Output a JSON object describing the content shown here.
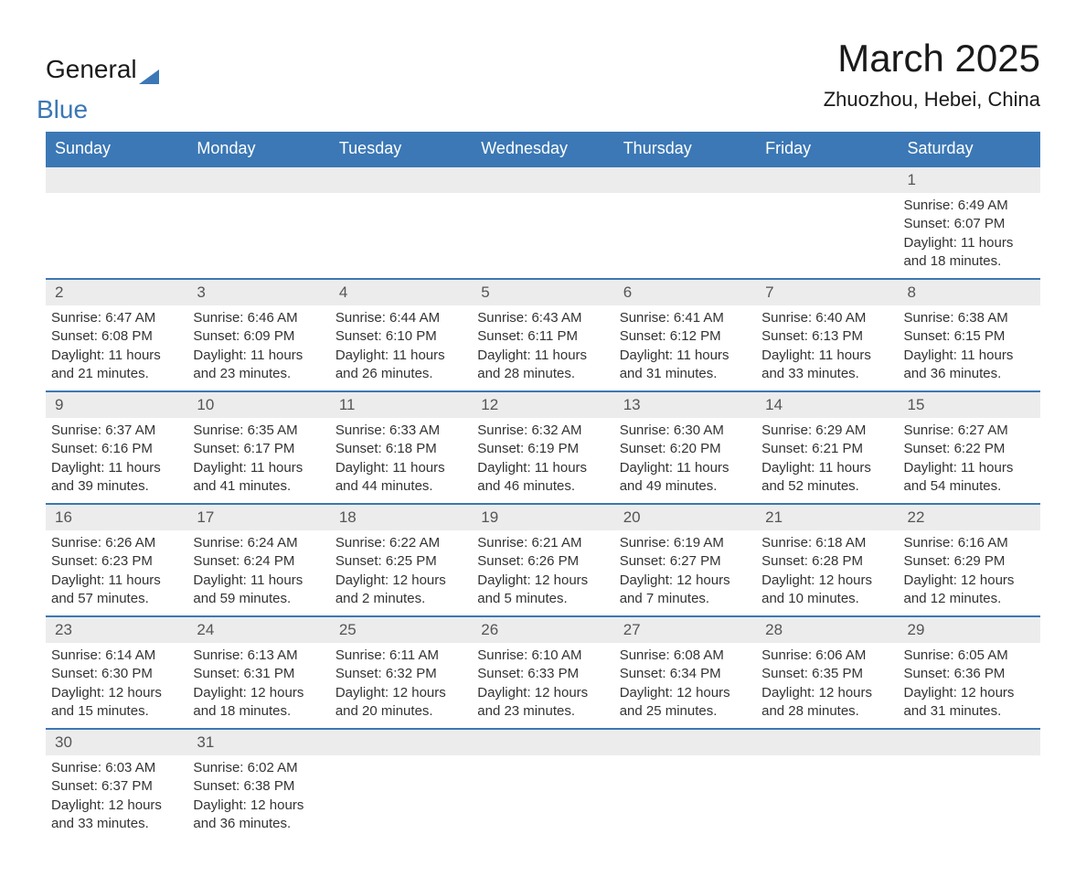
{
  "logo": {
    "word1": "General",
    "word2": "Blue"
  },
  "header": {
    "month_title": "March 2025",
    "location": "Zhuozhou, Hebei, China"
  },
  "styling": {
    "header_bg_color": "#3b78b5",
    "header_text_color": "#ffffff",
    "day_number_bg_color": "#ececec",
    "border_color": "#3b78b5",
    "body_text_color": "#333333",
    "title_fontsize": 42,
    "location_fontsize": 22,
    "weekday_fontsize": 18,
    "day_number_fontsize": 17,
    "content_fontsize": 15
  },
  "weekdays": [
    "Sunday",
    "Monday",
    "Tuesday",
    "Wednesday",
    "Thursday",
    "Friday",
    "Saturday"
  ],
  "weeks": [
    [
      {
        "blank": true
      },
      {
        "blank": true
      },
      {
        "blank": true
      },
      {
        "blank": true
      },
      {
        "blank": true
      },
      {
        "blank": true
      },
      {
        "day": "1",
        "sunrise": "Sunrise: 6:49 AM",
        "sunset": "Sunset: 6:07 PM",
        "daylight1": "Daylight: 11 hours",
        "daylight2": "and 18 minutes."
      }
    ],
    [
      {
        "day": "2",
        "sunrise": "Sunrise: 6:47 AM",
        "sunset": "Sunset: 6:08 PM",
        "daylight1": "Daylight: 11 hours",
        "daylight2": "and 21 minutes."
      },
      {
        "day": "3",
        "sunrise": "Sunrise: 6:46 AM",
        "sunset": "Sunset: 6:09 PM",
        "daylight1": "Daylight: 11 hours",
        "daylight2": "and 23 minutes."
      },
      {
        "day": "4",
        "sunrise": "Sunrise: 6:44 AM",
        "sunset": "Sunset: 6:10 PM",
        "daylight1": "Daylight: 11 hours",
        "daylight2": "and 26 minutes."
      },
      {
        "day": "5",
        "sunrise": "Sunrise: 6:43 AM",
        "sunset": "Sunset: 6:11 PM",
        "daylight1": "Daylight: 11 hours",
        "daylight2": "and 28 minutes."
      },
      {
        "day": "6",
        "sunrise": "Sunrise: 6:41 AM",
        "sunset": "Sunset: 6:12 PM",
        "daylight1": "Daylight: 11 hours",
        "daylight2": "and 31 minutes."
      },
      {
        "day": "7",
        "sunrise": "Sunrise: 6:40 AM",
        "sunset": "Sunset: 6:13 PM",
        "daylight1": "Daylight: 11 hours",
        "daylight2": "and 33 minutes."
      },
      {
        "day": "8",
        "sunrise": "Sunrise: 6:38 AM",
        "sunset": "Sunset: 6:15 PM",
        "daylight1": "Daylight: 11 hours",
        "daylight2": "and 36 minutes."
      }
    ],
    [
      {
        "day": "9",
        "sunrise": "Sunrise: 6:37 AM",
        "sunset": "Sunset: 6:16 PM",
        "daylight1": "Daylight: 11 hours",
        "daylight2": "and 39 minutes."
      },
      {
        "day": "10",
        "sunrise": "Sunrise: 6:35 AM",
        "sunset": "Sunset: 6:17 PM",
        "daylight1": "Daylight: 11 hours",
        "daylight2": "and 41 minutes."
      },
      {
        "day": "11",
        "sunrise": "Sunrise: 6:33 AM",
        "sunset": "Sunset: 6:18 PM",
        "daylight1": "Daylight: 11 hours",
        "daylight2": "and 44 minutes."
      },
      {
        "day": "12",
        "sunrise": "Sunrise: 6:32 AM",
        "sunset": "Sunset: 6:19 PM",
        "daylight1": "Daylight: 11 hours",
        "daylight2": "and 46 minutes."
      },
      {
        "day": "13",
        "sunrise": "Sunrise: 6:30 AM",
        "sunset": "Sunset: 6:20 PM",
        "daylight1": "Daylight: 11 hours",
        "daylight2": "and 49 minutes."
      },
      {
        "day": "14",
        "sunrise": "Sunrise: 6:29 AM",
        "sunset": "Sunset: 6:21 PM",
        "daylight1": "Daylight: 11 hours",
        "daylight2": "and 52 minutes."
      },
      {
        "day": "15",
        "sunrise": "Sunrise: 6:27 AM",
        "sunset": "Sunset: 6:22 PM",
        "daylight1": "Daylight: 11 hours",
        "daylight2": "and 54 minutes."
      }
    ],
    [
      {
        "day": "16",
        "sunrise": "Sunrise: 6:26 AM",
        "sunset": "Sunset: 6:23 PM",
        "daylight1": "Daylight: 11 hours",
        "daylight2": "and 57 minutes."
      },
      {
        "day": "17",
        "sunrise": "Sunrise: 6:24 AM",
        "sunset": "Sunset: 6:24 PM",
        "daylight1": "Daylight: 11 hours",
        "daylight2": "and 59 minutes."
      },
      {
        "day": "18",
        "sunrise": "Sunrise: 6:22 AM",
        "sunset": "Sunset: 6:25 PM",
        "daylight1": "Daylight: 12 hours",
        "daylight2": "and 2 minutes."
      },
      {
        "day": "19",
        "sunrise": "Sunrise: 6:21 AM",
        "sunset": "Sunset: 6:26 PM",
        "daylight1": "Daylight: 12 hours",
        "daylight2": "and 5 minutes."
      },
      {
        "day": "20",
        "sunrise": "Sunrise: 6:19 AM",
        "sunset": "Sunset: 6:27 PM",
        "daylight1": "Daylight: 12 hours",
        "daylight2": "and 7 minutes."
      },
      {
        "day": "21",
        "sunrise": "Sunrise: 6:18 AM",
        "sunset": "Sunset: 6:28 PM",
        "daylight1": "Daylight: 12 hours",
        "daylight2": "and 10 minutes."
      },
      {
        "day": "22",
        "sunrise": "Sunrise: 6:16 AM",
        "sunset": "Sunset: 6:29 PM",
        "daylight1": "Daylight: 12 hours",
        "daylight2": "and 12 minutes."
      }
    ],
    [
      {
        "day": "23",
        "sunrise": "Sunrise: 6:14 AM",
        "sunset": "Sunset: 6:30 PM",
        "daylight1": "Daylight: 12 hours",
        "daylight2": "and 15 minutes."
      },
      {
        "day": "24",
        "sunrise": "Sunrise: 6:13 AM",
        "sunset": "Sunset: 6:31 PM",
        "daylight1": "Daylight: 12 hours",
        "daylight2": "and 18 minutes."
      },
      {
        "day": "25",
        "sunrise": "Sunrise: 6:11 AM",
        "sunset": "Sunset: 6:32 PM",
        "daylight1": "Daylight: 12 hours",
        "daylight2": "and 20 minutes."
      },
      {
        "day": "26",
        "sunrise": "Sunrise: 6:10 AM",
        "sunset": "Sunset: 6:33 PM",
        "daylight1": "Daylight: 12 hours",
        "daylight2": "and 23 minutes."
      },
      {
        "day": "27",
        "sunrise": "Sunrise: 6:08 AM",
        "sunset": "Sunset: 6:34 PM",
        "daylight1": "Daylight: 12 hours",
        "daylight2": "and 25 minutes."
      },
      {
        "day": "28",
        "sunrise": "Sunrise: 6:06 AM",
        "sunset": "Sunset: 6:35 PM",
        "daylight1": "Daylight: 12 hours",
        "daylight2": "and 28 minutes."
      },
      {
        "day": "29",
        "sunrise": "Sunrise: 6:05 AM",
        "sunset": "Sunset: 6:36 PM",
        "daylight1": "Daylight: 12 hours",
        "daylight2": "and 31 minutes."
      }
    ],
    [
      {
        "day": "30",
        "sunrise": "Sunrise: 6:03 AM",
        "sunset": "Sunset: 6:37 PM",
        "daylight1": "Daylight: 12 hours",
        "daylight2": "and 33 minutes."
      },
      {
        "day": "31",
        "sunrise": "Sunrise: 6:02 AM",
        "sunset": "Sunset: 6:38 PM",
        "daylight1": "Daylight: 12 hours",
        "daylight2": "and 36 minutes."
      },
      {
        "blank": true
      },
      {
        "blank": true
      },
      {
        "blank": true
      },
      {
        "blank": true
      },
      {
        "blank": true
      }
    ]
  ]
}
